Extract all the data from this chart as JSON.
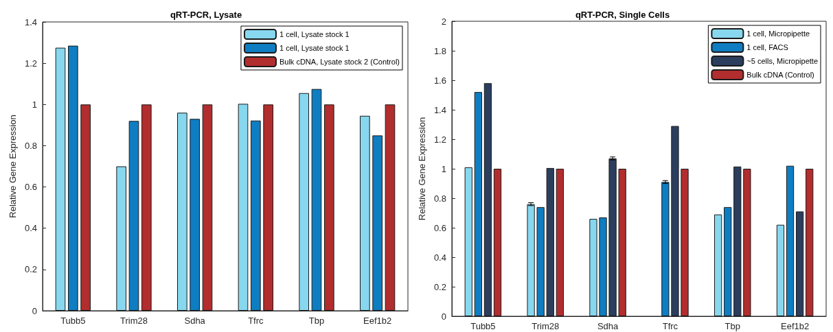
{
  "chart_data": [
    {
      "type": "bar",
      "title": "qRT-PCR, Lysate",
      "ylabel": "Relative Gene Expression",
      "categories": [
        "Tubb5",
        "Trim28",
        "Sdha",
        "Tfrc",
        "Tbp",
        "Eef1b2"
      ],
      "ylim": [
        0,
        1.4
      ],
      "yticks": [
        0,
        0.2,
        0.4,
        0.6,
        0.8,
        1,
        1.2,
        1.4
      ],
      "legend": "top right",
      "grid": false,
      "series": [
        {
          "name": "1 cell, Lysate stock 1",
          "color": "#87d7ee",
          "values": [
            1.275,
            0.7,
            0.96,
            1.003,
            1.055,
            0.945
          ]
        },
        {
          "name": "1 cell, Lysate stock 1",
          "color": "#0e7dc2",
          "values": [
            1.285,
            0.92,
            0.93,
            0.922,
            1.075,
            0.85
          ]
        },
        {
          "name": "Bulk cDNA, Lysate stock 2 (Control)",
          "color": "#b22e2e",
          "values": [
            1,
            1,
            1,
            1,
            1,
            1
          ]
        }
      ]
    },
    {
      "type": "bar",
      "title": "qRT-PCR, Single Cells",
      "ylabel": "Relative Gene Expression",
      "categories": [
        "Tubb5",
        "Trim28",
        "Sdha",
        "Tfrc",
        "Tbp",
        "Eef1b2"
      ],
      "ylim": [
        0,
        2
      ],
      "yticks": [
        0,
        0.2,
        0.4,
        0.6,
        0.8,
        1,
        1.2,
        1.4,
        1.6,
        1.8,
        2
      ],
      "legend": "top right",
      "grid": false,
      "series": [
        {
          "name": "1 cell, Micropipette",
          "color": "#87d7ee",
          "values": [
            1.01,
            0.76,
            0.66,
            null,
            0.69,
            0.62
          ],
          "errors": [
            null,
            0.01,
            null,
            null,
            null,
            null
          ]
        },
        {
          "name": "1 cell, FACS",
          "color": "#0e7dc2",
          "values": [
            1.52,
            0.74,
            0.67,
            0.91,
            0.74,
            1.02
          ],
          "errors": [
            null,
            null,
            null,
            0.01,
            null,
            null
          ]
        },
        {
          "name": "~5 cells, Micropipette",
          "color": "#2c3e5e",
          "values": [
            1.58,
            1.005,
            1.07,
            1.29,
            1.015,
            0.71
          ],
          "errors": [
            null,
            null,
            0.01,
            null,
            null,
            null
          ]
        },
        {
          "name": "Bulk cDNA (Control)",
          "color": "#b22e2e",
          "values": [
            1,
            1,
            1,
            1,
            1,
            1
          ]
        }
      ]
    }
  ]
}
